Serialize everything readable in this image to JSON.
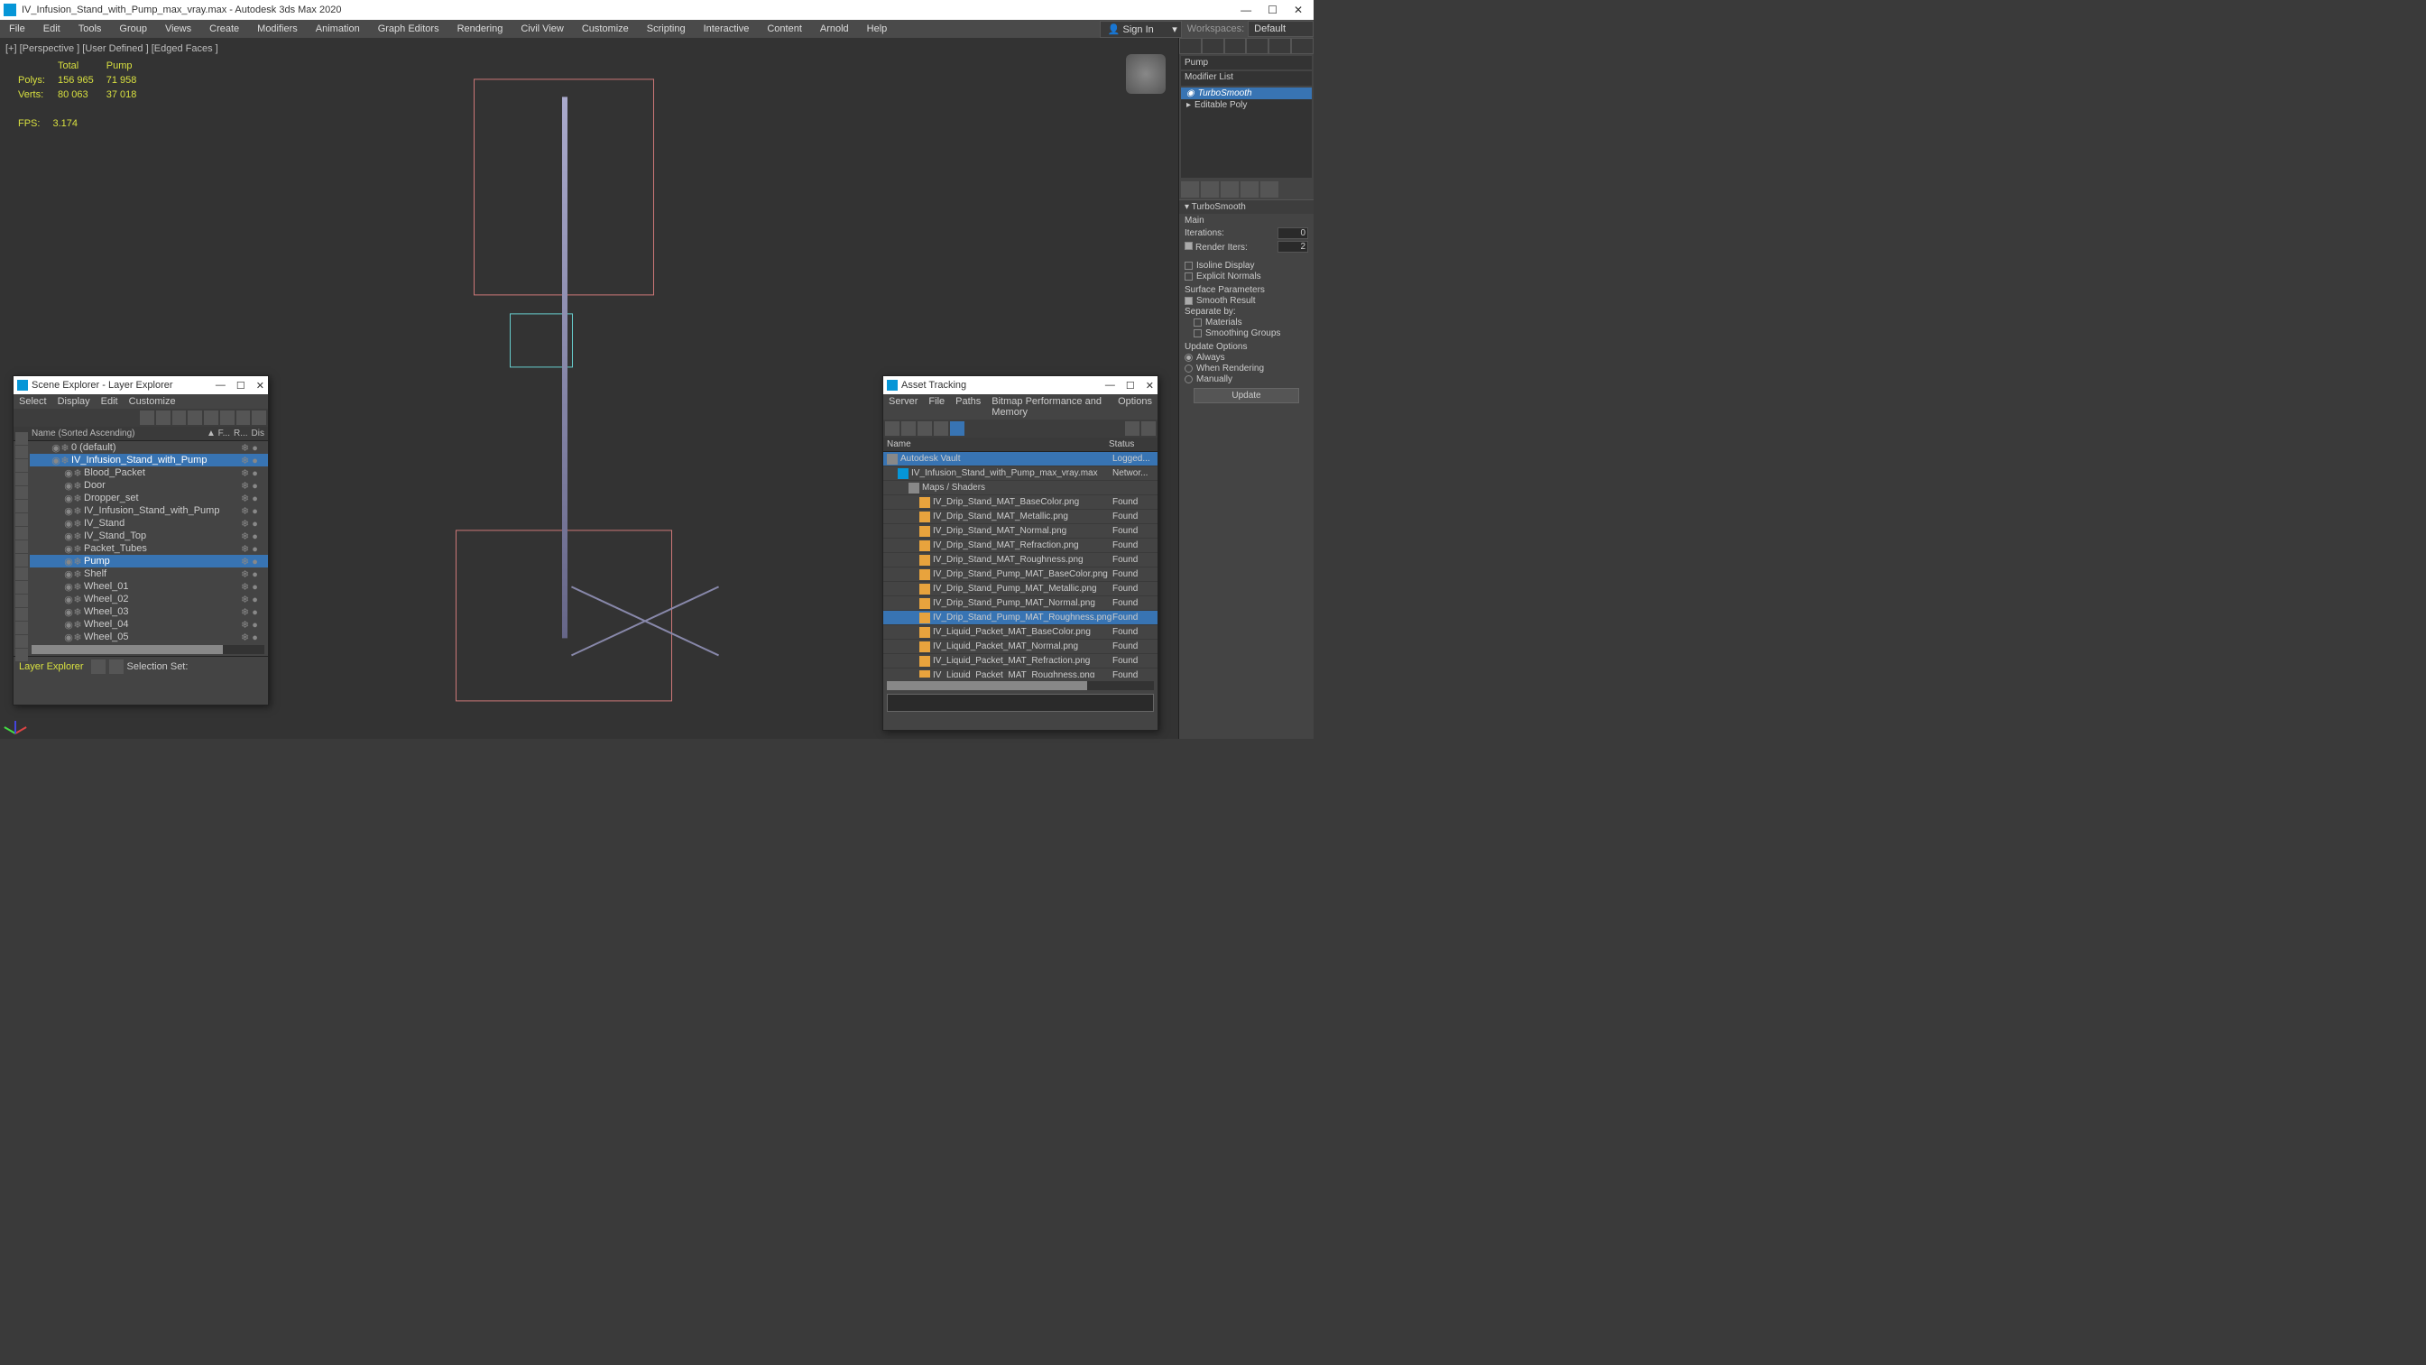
{
  "window": {
    "title": "IV_Infusion_Stand_with_Pump_max_vray.max - Autodesk 3ds Max 2020"
  },
  "menubar": {
    "items": [
      "File",
      "Edit",
      "Tools",
      "Group",
      "Views",
      "Create",
      "Modifiers",
      "Animation",
      "Graph Editors",
      "Rendering",
      "Civil View",
      "Customize",
      "Scripting",
      "Interactive",
      "Content",
      "Arnold",
      "Help"
    ],
    "signin": "Sign In",
    "workspace_label": "Workspaces:",
    "workspace_value": "Default"
  },
  "viewport": {
    "label": "[+] [Perspective ]  [User Defined ] [Edged Faces ]",
    "stats": {
      "h_total": "Total",
      "h_pump": "Pump",
      "polys_label": "Polys:",
      "polys_total": "156 965",
      "polys_pump": "71 958",
      "verts_label": "Verts:",
      "verts_total": "80 063",
      "verts_pump": "37 018",
      "fps_label": "FPS:",
      "fps_value": "3.174"
    }
  },
  "command_panel": {
    "object_name": "Pump",
    "modifier_list_label": "Modifier List",
    "stack": {
      "turbosmooth": "TurboSmooth",
      "editable_poly": "Editable Poly"
    },
    "rollout": {
      "title": "TurboSmooth",
      "main": "Main",
      "iterations_label": "Iterations:",
      "iterations_value": "0",
      "render_iters_label": "Render Iters:",
      "render_iters_value": "2",
      "isoline": "Isoline Display",
      "explicit_normals": "Explicit Normals",
      "surface_params": "Surface Parameters",
      "smooth_result": "Smooth Result",
      "separate_by": "Separate by:",
      "materials": "Materials",
      "smoothing_groups": "Smoothing Groups",
      "update_options": "Update Options",
      "always": "Always",
      "when_rendering": "When Rendering",
      "manually": "Manually",
      "update_btn": "Update"
    }
  },
  "scene_explorer": {
    "title": "Scene Explorer - Layer Explorer",
    "menu": [
      "Select",
      "Display",
      "Edit",
      "Customize"
    ],
    "header_name": "Name (Sorted Ascending)",
    "header_f": "▲ F...",
    "header_r": "R...",
    "header_dis": "Dis",
    "nodes": [
      {
        "indent": 0,
        "name": "0 (default)",
        "sel": false
      },
      {
        "indent": 0,
        "name": "IV_Infusion_Stand_with_Pump",
        "sel": true
      },
      {
        "indent": 1,
        "name": "Blood_Packet",
        "sel": false
      },
      {
        "indent": 1,
        "name": "Door",
        "sel": false
      },
      {
        "indent": 1,
        "name": "Dropper_set",
        "sel": false
      },
      {
        "indent": 1,
        "name": "IV_Infusion_Stand_with_Pump",
        "sel": false
      },
      {
        "indent": 1,
        "name": "IV_Stand",
        "sel": false
      },
      {
        "indent": 1,
        "name": "IV_Stand_Top",
        "sel": false
      },
      {
        "indent": 1,
        "name": "Packet_Tubes",
        "sel": false
      },
      {
        "indent": 1,
        "name": "Pump",
        "sel": true
      },
      {
        "indent": 1,
        "name": "Shelf",
        "sel": false
      },
      {
        "indent": 1,
        "name": "Wheel_01",
        "sel": false
      },
      {
        "indent": 1,
        "name": "Wheel_02",
        "sel": false
      },
      {
        "indent": 1,
        "name": "Wheel_03",
        "sel": false
      },
      {
        "indent": 1,
        "name": "Wheel_04",
        "sel": false
      },
      {
        "indent": 1,
        "name": "Wheel_05",
        "sel": false
      }
    ],
    "footer_label": "Layer Explorer",
    "selection_set": "Selection Set:"
  },
  "asset_tracking": {
    "title": "Asset Tracking",
    "menu": [
      "Server",
      "File",
      "Paths",
      "Bitmap Performance and Memory",
      "Options"
    ],
    "header_name": "Name",
    "header_status": "Status",
    "rows": [
      {
        "indent": 0,
        "icon": "gray",
        "name": "Autodesk Vault",
        "status": "Logged...",
        "sel": true
      },
      {
        "indent": 1,
        "icon": "teal",
        "name": "IV_Infusion_Stand_with_Pump_max_vray.max",
        "status": "Networ...",
        "sel": false
      },
      {
        "indent": 2,
        "icon": "gray",
        "name": "Maps / Shaders",
        "status": "",
        "sel": false
      },
      {
        "indent": 3,
        "icon": "orange",
        "name": "IV_Drip_Stand_MAT_BaseColor.png",
        "status": "Found",
        "sel": false
      },
      {
        "indent": 3,
        "icon": "orange",
        "name": "IV_Drip_Stand_MAT_Metallic.png",
        "status": "Found",
        "sel": false
      },
      {
        "indent": 3,
        "icon": "orange",
        "name": "IV_Drip_Stand_MAT_Normal.png",
        "status": "Found",
        "sel": false
      },
      {
        "indent": 3,
        "icon": "orange",
        "name": "IV_Drip_Stand_MAT_Refraction.png",
        "status": "Found",
        "sel": false
      },
      {
        "indent": 3,
        "icon": "orange",
        "name": "IV_Drip_Stand_MAT_Roughness.png",
        "status": "Found",
        "sel": false
      },
      {
        "indent": 3,
        "icon": "orange",
        "name": "IV_Drip_Stand_Pump_MAT_BaseColor.png",
        "status": "Found",
        "sel": false
      },
      {
        "indent": 3,
        "icon": "orange",
        "name": "IV_Drip_Stand_Pump_MAT_Metallic.png",
        "status": "Found",
        "sel": false
      },
      {
        "indent": 3,
        "icon": "orange",
        "name": "IV_Drip_Stand_Pump_MAT_Normal.png",
        "status": "Found",
        "sel": false
      },
      {
        "indent": 3,
        "icon": "orange",
        "name": "IV_Drip_Stand_Pump_MAT_Roughness.png",
        "status": "Found",
        "sel": true
      },
      {
        "indent": 3,
        "icon": "orange",
        "name": "IV_Liquid_Packet_MAT_BaseColor.png",
        "status": "Found",
        "sel": false
      },
      {
        "indent": 3,
        "icon": "orange",
        "name": "IV_Liquid_Packet_MAT_Normal.png",
        "status": "Found",
        "sel": false
      },
      {
        "indent": 3,
        "icon": "orange",
        "name": "IV_Liquid_Packet_MAT_Refraction.png",
        "status": "Found",
        "sel": false
      },
      {
        "indent": 3,
        "icon": "orange",
        "name": "IV_Liquid_Packet_MAT_Roughness.png",
        "status": "Found",
        "sel": false
      }
    ]
  }
}
